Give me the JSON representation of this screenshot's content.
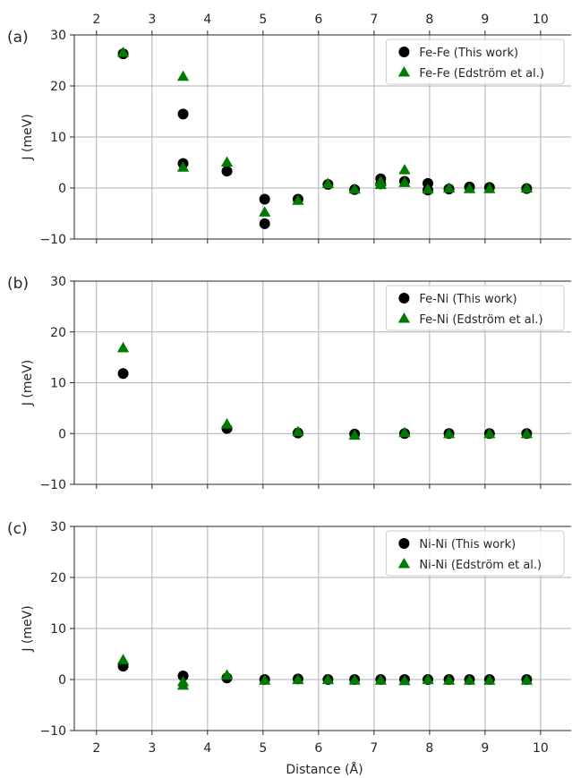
{
  "chart_data": [
    {
      "type": "scatter",
      "panel_label": "(a)",
      "ylabel": "J (meV)",
      "xlabel": "",
      "xlim": [
        1.6,
        10.55
      ],
      "ylim": [
        -10,
        30
      ],
      "x_ticks": [
        "2",
        "3",
        "4",
        "5",
        "6",
        "7",
        "8",
        "9",
        "10"
      ],
      "y_ticks": [
        "30",
        "20",
        "10",
        "0",
        "−10"
      ],
      "grid": true,
      "legend_position": "top-right",
      "series": [
        {
          "name": "Fe-Fe (This work)",
          "marker": "circle",
          "color": "#000000",
          "x": [
            2.48,
            3.56,
            3.56,
            4.35,
            5.03,
            5.03,
            5.63,
            6.17,
            6.65,
            7.12,
            7.12,
            7.55,
            7.97,
            7.97,
            8.35,
            8.72,
            9.08,
            9.75
          ],
          "y": [
            26.3,
            14.5,
            4.8,
            3.3,
            -2.2,
            -7.0,
            -2.2,
            0.7,
            -0.3,
            1.8,
            0.8,
            1.3,
            0.9,
            -0.4,
            -0.2,
            0.2,
            0.1,
            -0.1
          ]
        },
        {
          "name": "Fe-Fe (Edström et al.)",
          "marker": "triangle",
          "color": "#007a00",
          "x": [
            2.48,
            3.56,
            3.56,
            4.35,
            5.03,
            5.63,
            6.17,
            6.65,
            7.12,
            7.12,
            7.55,
            7.55,
            7.97,
            8.35,
            8.72,
            9.08,
            9.75
          ],
          "y": [
            26.5,
            21.8,
            4.0,
            5.0,
            -4.8,
            -2.5,
            0.8,
            -0.3,
            1.2,
            0.6,
            3.5,
            1.0,
            -0.3,
            -0.1,
            -0.2,
            -0.2,
            -0.1
          ]
        }
      ]
    },
    {
      "type": "scatter",
      "panel_label": "(b)",
      "ylabel": "J (meV)",
      "xlabel": "",
      "xlim": [
        1.6,
        10.55
      ],
      "ylim": [
        -10,
        30
      ],
      "x_ticks": [
        "2",
        "3",
        "4",
        "5",
        "6",
        "7",
        "8",
        "9",
        "10"
      ],
      "y_ticks": [
        "30",
        "20",
        "10",
        "0",
        "−10"
      ],
      "grid": true,
      "legend_position": "top-right",
      "series": [
        {
          "name": "Fe-Ni (This work)",
          "marker": "circle",
          "color": "#000000",
          "x": [
            2.48,
            4.35,
            5.63,
            6.65,
            7.55,
            8.35,
            9.08,
            9.75
          ],
          "y": [
            11.8,
            1.0,
            0.1,
            -0.1,
            0.0,
            0.0,
            0.0,
            0.0
          ]
        },
        {
          "name": "Fe-Ni (Edström et al.)",
          "marker": "triangle",
          "color": "#007a00",
          "x": [
            2.48,
            4.35,
            5.63,
            6.65,
            7.55,
            8.35,
            9.08,
            9.75
          ],
          "y": [
            16.8,
            1.8,
            0.3,
            -0.4,
            0.1,
            -0.1,
            -0.1,
            -0.1
          ]
        }
      ]
    },
    {
      "type": "scatter",
      "panel_label": "(c)",
      "ylabel": "J (meV)",
      "xlabel": "Distance (Å)",
      "xlim": [
        1.6,
        10.55
      ],
      "ylim": [
        -10,
        30
      ],
      "x_ticks": [
        "2",
        "3",
        "4",
        "5",
        "6",
        "7",
        "8",
        "9",
        "10"
      ],
      "y_ticks": [
        "30",
        "20",
        "10",
        "0",
        "−10"
      ],
      "grid": true,
      "legend_position": "top-right",
      "series": [
        {
          "name": "Ni-Ni (This work)",
          "marker": "circle",
          "color": "#000000",
          "x": [
            2.48,
            3.56,
            4.35,
            5.03,
            5.63,
            6.17,
            6.65,
            7.12,
            7.55,
            7.97,
            8.35,
            8.72,
            9.08,
            9.75
          ],
          "y": [
            2.6,
            0.7,
            0.3,
            0.0,
            0.1,
            0.0,
            0.0,
            0.0,
            0.0,
            0.0,
            0.0,
            0.0,
            0.0,
            0.0
          ]
        },
        {
          "name": "Ni-Ni (Edström et al.)",
          "marker": "triangle",
          "color": "#007a00",
          "x": [
            2.48,
            3.56,
            3.56,
            4.35,
            5.03,
            5.63,
            6.17,
            6.65,
            7.12,
            7.55,
            7.97,
            8.35,
            8.72,
            9.08,
            9.75
          ],
          "y": [
            3.8,
            -0.5,
            -1.2,
            0.8,
            -0.2,
            -0.1,
            -0.1,
            -0.2,
            -0.2,
            -0.3,
            -0.1,
            -0.2,
            -0.2,
            -0.2,
            -0.2
          ]
        }
      ]
    }
  ]
}
